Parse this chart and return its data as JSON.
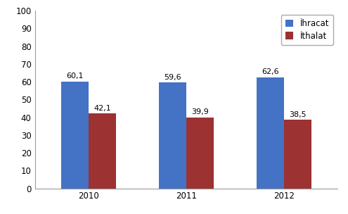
{
  "years": [
    "2010",
    "2011",
    "2012"
  ],
  "ihracat": [
    60.1,
    59.6,
    62.6
  ],
  "ithalat": [
    42.1,
    39.9,
    38.5
  ],
  "ihracat_color": "#4472C4",
  "ithalat_color": "#9C3232",
  "ylabel_ticks": [
    0,
    10,
    20,
    30,
    40,
    50,
    60,
    70,
    80,
    90,
    100
  ],
  "ylim": [
    0,
    100
  ],
  "legend_labels": [
    "İhracat",
    "İthalat"
  ],
  "bar_width": 0.28,
  "background_color": "#FFFFFF",
  "label_fontsize": 8,
  "tick_fontsize": 8.5,
  "legend_fontsize": 8.5
}
